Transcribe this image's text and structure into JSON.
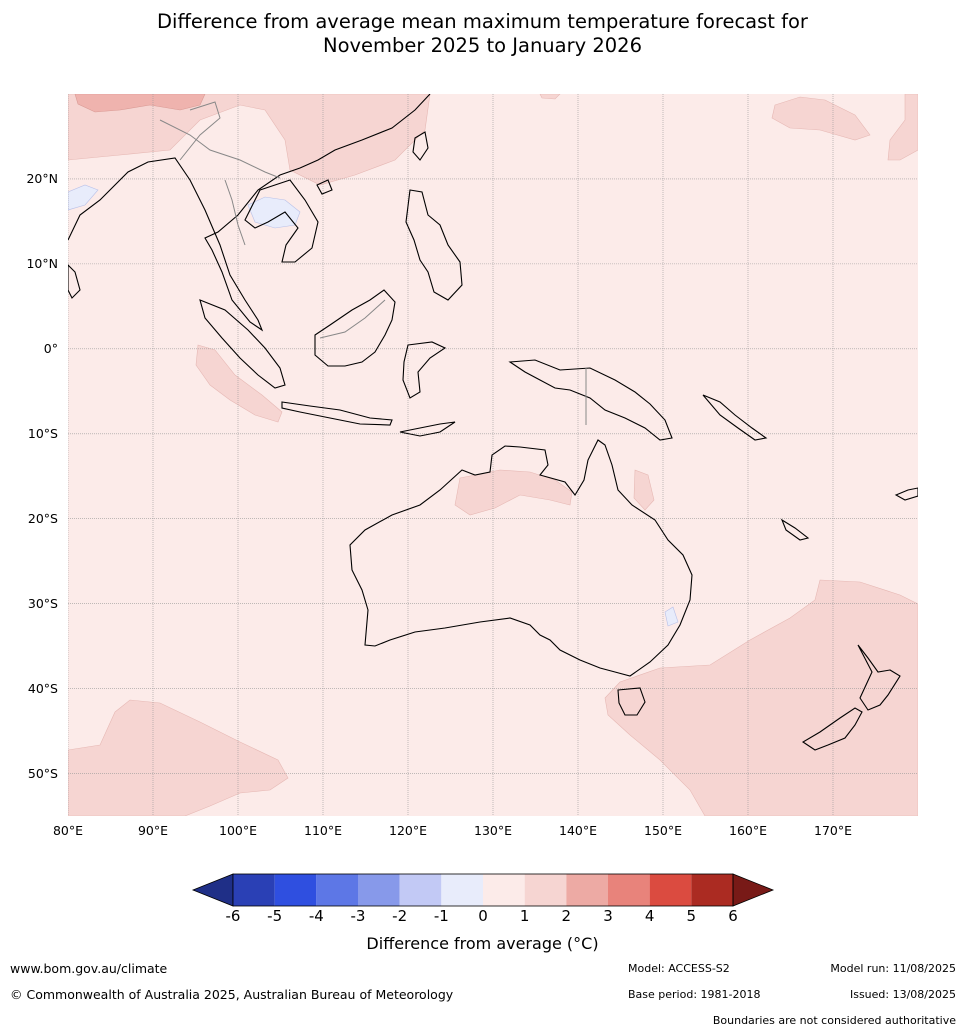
{
  "title_line1": "Difference from average mean maximum temperature forecast for",
  "title_line2": "November 2025 to January 2026",
  "map": {
    "lon_min": 80,
    "lon_max": 180,
    "lat_min": -55,
    "lat_max": 30,
    "lat_ticks": [
      {
        "value": 20,
        "label": "20°N"
      },
      {
        "value": 10,
        "label": "10°N"
      },
      {
        "value": 0,
        "label": "0°"
      },
      {
        "value": -10,
        "label": "10°S"
      },
      {
        "value": -20,
        "label": "20°S"
      },
      {
        "value": -30,
        "label": "30°S"
      },
      {
        "value": -40,
        "label": "40°S"
      },
      {
        "value": -50,
        "label": "50°S"
      }
    ],
    "lon_ticks": [
      {
        "value": 80,
        "label": "80°E"
      },
      {
        "value": 90,
        "label": "90°E"
      },
      {
        "value": 100,
        "label": "100°E"
      },
      {
        "value": 110,
        "label": "110°E"
      },
      {
        "value": 120,
        "label": "120°E"
      },
      {
        "value": 130,
        "label": "130°E"
      },
      {
        "value": 140,
        "label": "140°E"
      },
      {
        "value": 150,
        "label": "150°E"
      },
      {
        "value": 160,
        "label": "160°E"
      },
      {
        "value": 170,
        "label": "170°E"
      }
    ],
    "background_color": "#fcebe9",
    "anomaly_1_2_color": "#f6d5d2",
    "anomaly_2_3_color": "#efb3ae",
    "anomaly_neg_color": "#e8ecfb"
  },
  "colorbar": {
    "ticks": [
      "-6",
      "-5",
      "-4",
      "-3",
      "-2",
      "-1",
      "0",
      "1",
      "2",
      "3",
      "4",
      "5",
      "6"
    ],
    "colors": [
      "#1f2f87",
      "#2a40b5",
      "#2f4fe0",
      "#5d77e6",
      "#8799ea",
      "#c2c9f5",
      "#e8ecfb",
      "#fcebe9",
      "#f6d5d2",
      "#edaaa4",
      "#e8837b",
      "#db4b40",
      "#ab2b22",
      "#781a17"
    ],
    "label": "Difference from average (°C)"
  },
  "footer": {
    "url": "www.bom.gov.au/climate",
    "copyright": "© Commonwealth of Australia 2025, Australian Bureau of Meteorology",
    "model": "Model: ACCESS-S2",
    "base_period": "Base period: 1981-2018",
    "model_run": "Model run: 11/08/2025",
    "issued": "Issued: 13/08/2025",
    "disclaimer": "Boundaries are not considered authoritative"
  }
}
